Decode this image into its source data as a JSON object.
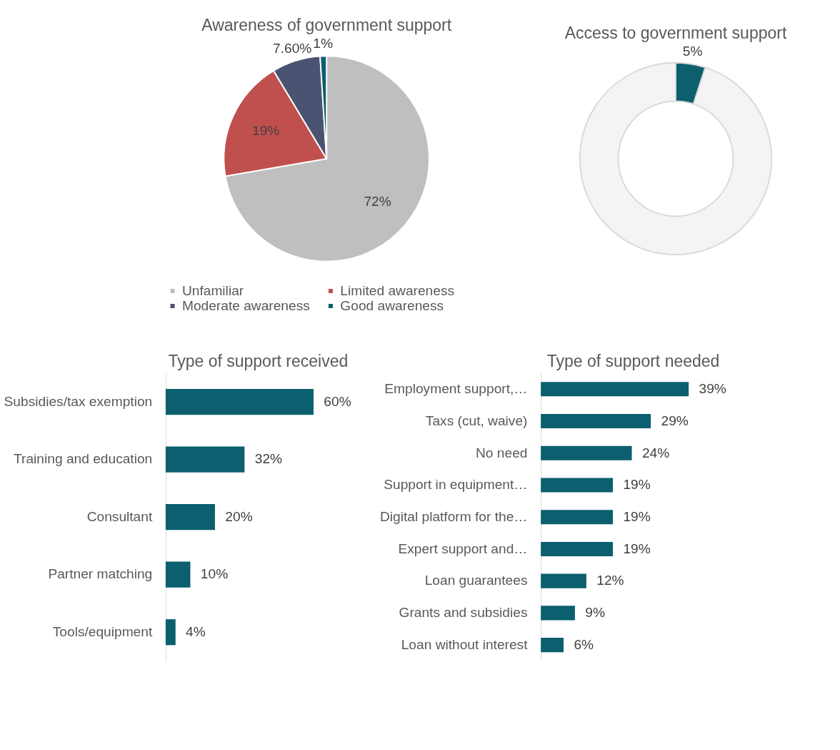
{
  "chart_data": [
    {
      "type": "pie",
      "title": "Awareness of government support",
      "categories": [
        "Unfamiliar",
        "Limited awareness",
        "Moderate awareness",
        "Good awareness"
      ],
      "values": [
        72,
        19,
        7.6,
        1
      ],
      "value_labels": [
        "72%",
        "19%",
        "7.60%",
        "1%"
      ],
      "colors": [
        "#bfbfbf",
        "#c0504d",
        "#4a5472",
        "#0b5f6e"
      ],
      "legend": "bottom"
    },
    {
      "type": "donut",
      "title": "Access to government support",
      "categories": [
        null,
        null
      ],
      "values": [
        5,
        95
      ],
      "value_labels": [
        "5%",
        null
      ],
      "colors": [
        "#0b5f6e",
        "#f4f4f4"
      ]
    },
    {
      "type": "bar",
      "orientation": "horizontal",
      "title": "Type of support received",
      "categories": [
        "Subsidies/tax exemption",
        "Training and education",
        "Consultant",
        "Partner matching",
        "Tools/equipment"
      ],
      "values": [
        60,
        32,
        20,
        10,
        4
      ],
      "value_labels": [
        "60%",
        "32%",
        "20%",
        "10%",
        "4%"
      ],
      "color": "#0b5f6e"
    },
    {
      "type": "bar",
      "orientation": "horizontal",
      "title": "Type of support needed",
      "categories": [
        "Employment support,…",
        "Taxs (cut, waive)",
        "No need",
        "Support in equipment…",
        "Digital platform for the…",
        "Expert support and…",
        "Loan guarantees",
        "Grants and subsidies",
        "Loan without interest"
      ],
      "values": [
        39,
        29,
        24,
        19,
        19,
        19,
        12,
        9,
        6
      ],
      "value_labels": [
        "39%",
        "29%",
        "24%",
        "19%",
        "19%",
        "19%",
        "12%",
        "9%",
        "6%"
      ],
      "color": "#0b5f6e"
    }
  ]
}
